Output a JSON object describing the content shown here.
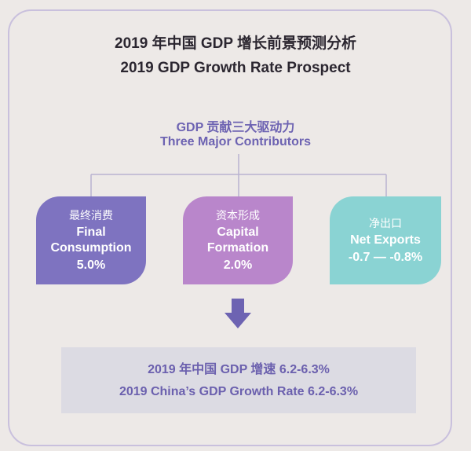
{
  "header": {
    "title_cn": "2019 年中国 GDP 增长前景预测分析",
    "title_en": "2019 GDP Growth Rate Prospect"
  },
  "subheader": {
    "label_cn": "GDP 贡献三大驱动力",
    "label_en": "Three Major Contributors"
  },
  "contributors": [
    {
      "cn": "最终消费",
      "en_line1": "Final",
      "en_line2": "Consumption",
      "value": "5.0%"
    },
    {
      "cn": "资本形成",
      "en_line1": "Capital",
      "en_line2": "Formation",
      "value": "2.0%"
    },
    {
      "cn": "净出口",
      "en_line1": "Net Exports",
      "en_line2": "",
      "value": "-0.7 — -0.8%"
    }
  ],
  "result": {
    "line_cn": "2019 年中国 GDP 增速 6.2-6.3%",
    "line_en": "2019 China’s GDP Growth Rate 6.2-6.3%"
  },
  "colors": {
    "consumption": "#7e73c0",
    "capital": "#b986cb",
    "net_exports": "#8ad3d3",
    "accent_text": "#6d63b2"
  }
}
